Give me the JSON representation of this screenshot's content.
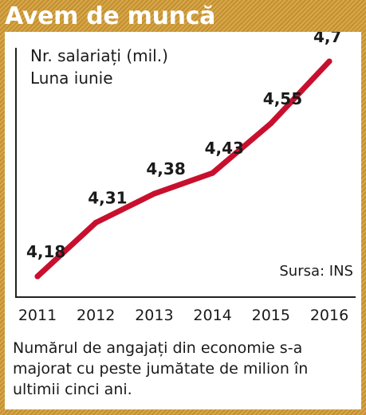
{
  "title": "Avem de muncă",
  "caption": "Numărul de angajați din economie s-a majorat cu peste jumătate de milion în ultimii cinci ani.",
  "colors": {
    "line": "#c8102e",
    "frame": "#c99a3c",
    "title_text": "#ffffff"
  },
  "chart_data": {
    "type": "line",
    "ylabel": "Nr. salariați (mil.)",
    "subtitle": "Luna iunie",
    "source": "Sursa: INS",
    "x": [
      "2011",
      "2012",
      "2013",
      "2014",
      "2015",
      "2016"
    ],
    "values": [
      4.18,
      4.31,
      4.38,
      4.43,
      4.55,
      4.7
    ],
    "data_labels": [
      "4,18",
      "4,31",
      "4,38",
      "4,43",
      "4,55",
      "4,7"
    ],
    "grid": false,
    "legend": "none"
  }
}
